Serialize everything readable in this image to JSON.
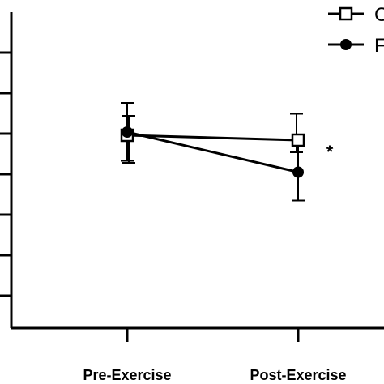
{
  "chart_data": {
    "type": "line",
    "categories": [
      "Pre-Exercise",
      "Post-Exercise"
    ],
    "series": [
      {
        "name": "C",
        "marker": "open-square",
        "values": [
          1.96,
          1.84
        ],
        "error": [
          [
            0.68,
            0.48
          ],
          [
            0.3,
            0.65
          ]
        ]
      },
      {
        "name": "F",
        "marker": "filled-circle",
        "values": [
          2.04,
          1.05
        ],
        "error": [
          [
            0.71,
            0.72
          ],
          [
            0.7,
            0.68
          ]
        ]
      }
    ],
    "ylim": [
      -2.8,
      5
    ],
    "yticks": [
      -2,
      -1,
      0,
      1,
      2,
      3,
      4
    ],
    "annotations": [
      {
        "text": "*",
        "category": "Post-Exercise"
      }
    ],
    "legend": "top-right",
    "grid": false,
    "title": "",
    "xlabel": "",
    "ylabel": ""
  }
}
